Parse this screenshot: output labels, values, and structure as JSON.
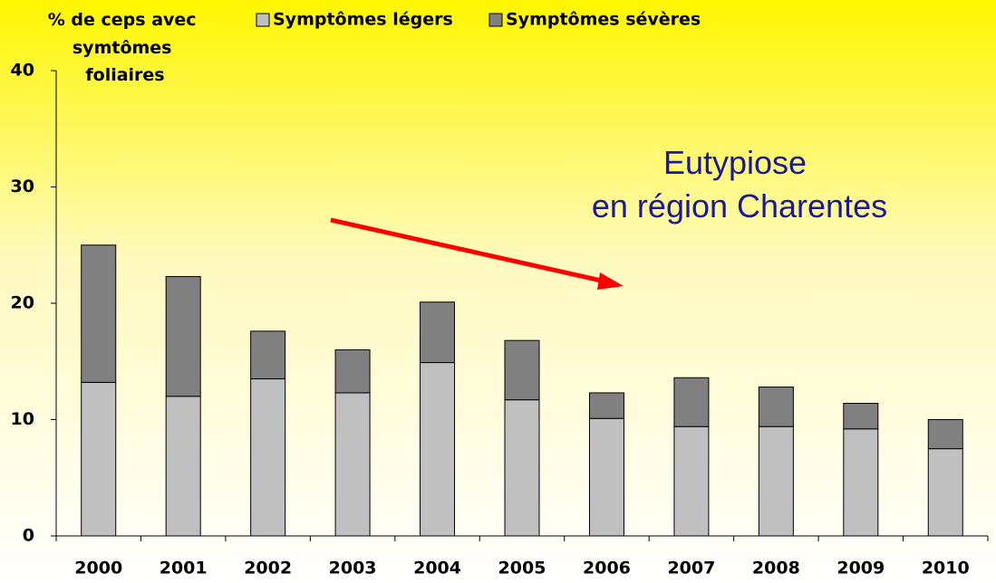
{
  "chart_data": {
    "type": "stacked_bar",
    "ylabel": [
      "% de ceps avec",
      "symtômes",
      "foliaires"
    ],
    "annotation": [
      "Eutypiose",
      "en région Charentes"
    ],
    "categories": [
      "2000",
      "2001",
      "2002",
      "2003",
      "2004",
      "2005",
      "2006",
      "2007",
      "2008",
      "2009",
      "2010"
    ],
    "series": [
      {
        "name": "Symptômes légers",
        "color": "#c0c0c0",
        "values": [
          13.2,
          12.0,
          13.5,
          12.3,
          14.9,
          11.7,
          10.1,
          9.4,
          9.4,
          9.2,
          7.5
        ]
      },
      {
        "name": "Symptômes sévères",
        "color": "#808080",
        "values": [
          11.8,
          10.3,
          4.1,
          3.7,
          5.2,
          5.1,
          2.2,
          4.2,
          3.4,
          2.2,
          2.5
        ]
      }
    ],
    "ylim": [
      0,
      40
    ],
    "yticks": [
      0,
      10,
      20,
      30,
      40
    ]
  }
}
